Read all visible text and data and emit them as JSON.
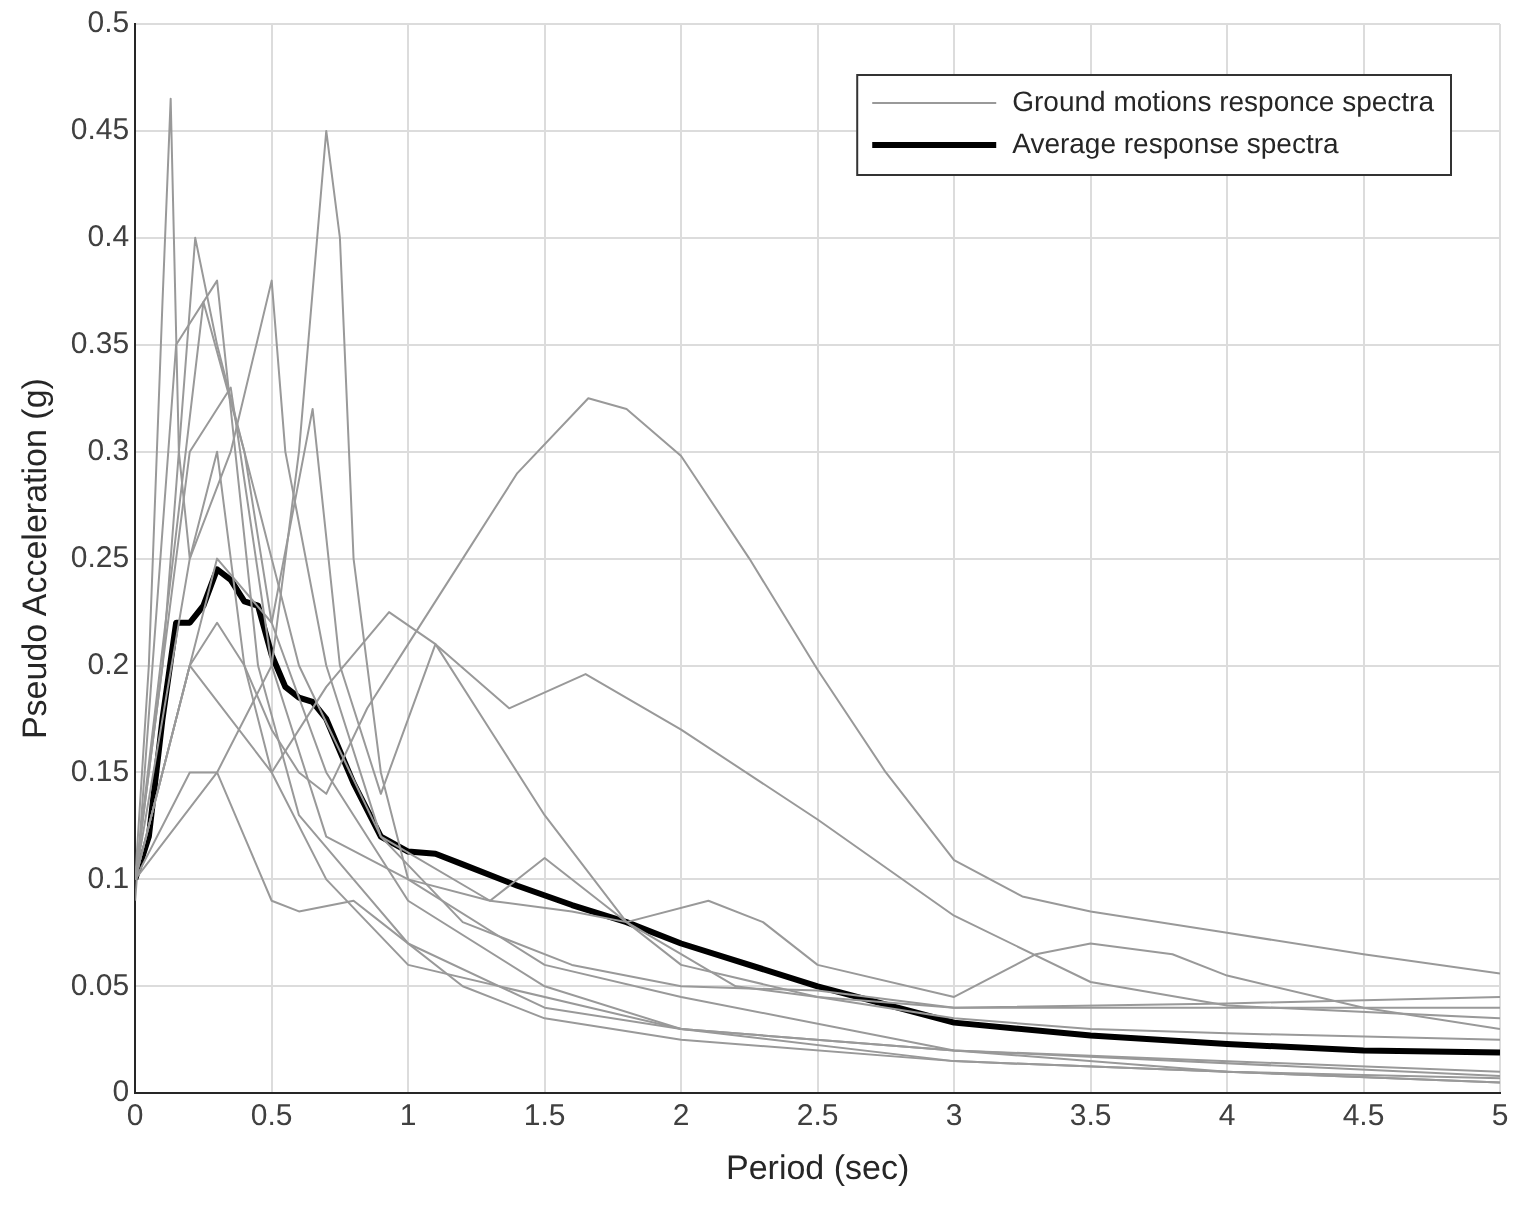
{
  "chart_data": {
    "type": "line",
    "xlabel": "Period (sec)",
    "ylabel": "Pseudo Acceleration (g)",
    "xlim": [
      0,
      5
    ],
    "xticks": [
      0,
      0.5,
      1,
      1.5,
      2,
      2.5,
      3,
      3.5,
      4,
      4.5,
      5
    ],
    "ylim": [
      0,
      0.5
    ],
    "yticks": [
      0,
      0.05,
      0.1,
      0.15,
      0.2,
      0.25,
      0.3,
      0.35,
      0.4,
      0.45,
      0.5
    ],
    "grid": true,
    "legend": "top right",
    "marker": "none",
    "line_style": "solid",
    "series": [
      {
        "name": "Ground motions responce spectra",
        "color": "#999999",
        "x": [
          0,
          0.1,
          0.2,
          0.3,
          0.4,
          0.5,
          0.6,
          0.7,
          0.85,
          1.0,
          1.2,
          1.4,
          1.66,
          1.8,
          2.0,
          2.25,
          2.5,
          2.75,
          3.0,
          3.25,
          3.5,
          4,
          4.5,
          5
        ],
        "values": [
          0.1,
          0.15,
          0.2,
          0.22,
          0.2,
          0.17,
          0.15,
          0.14,
          0.18,
          0.21,
          0.25,
          0.29,
          0.325,
          0.32,
          0.298,
          0.25,
          0.198,
          0.15,
          0.109,
          0.092,
          0.085,
          0.075,
          0.065,
          0.056
        ]
      },
      {
        "color": "#999999",
        "x": [
          0,
          0.2,
          0.5,
          0.7,
          0.93,
          1.1,
          1.37,
          1.65,
          2,
          2.5,
          3,
          3.5,
          4,
          5
        ],
        "values": [
          0.1,
          0.2,
          0.15,
          0.19,
          0.225,
          0.21,
          0.18,
          0.196,
          0.17,
          0.128,
          0.083,
          0.052,
          0.041,
          0.035
        ]
      },
      {
        "color": "#999999",
        "x": [
          0,
          0.3,
          0.5,
          0.6,
          0.7,
          0.75,
          0.8,
          0.9,
          1.0,
          1.5,
          2,
          3,
          4,
          5
        ],
        "values": [
          0.1,
          0.15,
          0.2,
          0.3,
          0.45,
          0.4,
          0.25,
          0.15,
          0.1,
          0.06,
          0.045,
          0.02,
          0.01,
          0.007
        ]
      },
      {
        "color": "#999999",
        "x": [
          0,
          0.05,
          0.1,
          0.13,
          0.16,
          0.2,
          0.3,
          0.4,
          0.5,
          0.7,
          1,
          2,
          3,
          5
        ],
        "values": [
          0.1,
          0.2,
          0.37,
          0.465,
          0.3,
          0.25,
          0.3,
          0.2,
          0.15,
          0.1,
          0.06,
          0.03,
          0.015,
          0.005
        ]
      },
      {
        "color": "#999999",
        "x": [
          0,
          0.1,
          0.22,
          0.3,
          0.4,
          0.5,
          0.7,
          1,
          1.5,
          2,
          3,
          5
        ],
        "values": [
          0.1,
          0.2,
          0.4,
          0.35,
          0.3,
          0.22,
          0.15,
          0.09,
          0.05,
          0.03,
          0.02,
          0.01
        ]
      },
      {
        "color": "#999999",
        "x": [
          0,
          0.2,
          0.35,
          0.5,
          0.55,
          0.7,
          0.9,
          1.2,
          1.6,
          2,
          2.5,
          3,
          3.5,
          4,
          5
        ],
        "values": [
          0.1,
          0.25,
          0.3,
          0.38,
          0.3,
          0.2,
          0.12,
          0.08,
          0.06,
          0.05,
          0.048,
          0.04,
          0.04,
          0.04,
          0.04
        ]
      },
      {
        "color": "#999999",
        "x": [
          0,
          0.3,
          0.5,
          0.65,
          0.75,
          0.9,
          1.1,
          1.3,
          1.5,
          1.8,
          2,
          2.2,
          2.5,
          3,
          3.5,
          4,
          5
        ],
        "values": [
          0.1,
          0.25,
          0.22,
          0.32,
          0.2,
          0.14,
          0.21,
          0.17,
          0.13,
          0.08,
          0.065,
          0.05,
          0.045,
          0.035,
          0.03,
          0.028,
          0.025
        ]
      },
      {
        "color": "#999999",
        "x": [
          0,
          0.2,
          0.3,
          0.4,
          0.5,
          0.6,
          0.8,
          0.9,
          1.2,
          1.5,
          2,
          3,
          5
        ],
        "values": [
          0.1,
          0.15,
          0.15,
          0.12,
          0.09,
          0.085,
          0.09,
          0.08,
          0.05,
          0.035,
          0.025,
          0.015,
          0.005
        ]
      },
      {
        "color": "#999999",
        "x": [
          0,
          0.2,
          0.35,
          0.5,
          0.7,
          1,
          1.3,
          1.6,
          1.8,
          2.1,
          2.3,
          2.5,
          3,
          3.3,
          3.5,
          3.8,
          4,
          4.5,
          5
        ],
        "values": [
          0.1,
          0.3,
          0.33,
          0.2,
          0.12,
          0.1,
          0.09,
          0.085,
          0.08,
          0.09,
          0.08,
          0.06,
          0.045,
          0.065,
          0.07,
          0.065,
          0.055,
          0.04,
          0.03
        ]
      },
      {
        "color": "#999999",
        "x": [
          0,
          0.25,
          0.4,
          0.6,
          0.9,
          1.3,
          1.5,
          1.7,
          2,
          2.5,
          3,
          4,
          5
        ],
        "values": [
          0.1,
          0.37,
          0.3,
          0.2,
          0.12,
          0.09,
          0.11,
          0.09,
          0.06,
          0.045,
          0.04,
          0.042,
          0.045
        ]
      },
      {
        "color": "#999999",
        "x": [
          0,
          0.15,
          0.3,
          0.45,
          0.6,
          0.8,
          1,
          1.5,
          2,
          3,
          5
        ],
        "values": [
          0.09,
          0.35,
          0.38,
          0.2,
          0.13,
          0.1,
          0.07,
          0.04,
          0.03,
          0.02,
          0.008
        ]
      },
      {
        "name": "Average response spectra",
        "color": "#000000",
        "x": [
          0,
          0.05,
          0.1,
          0.15,
          0.2,
          0.25,
          0.3,
          0.35,
          0.4,
          0.45,
          0.5,
          0.55,
          0.6,
          0.65,
          0.7,
          0.8,
          0.9,
          1.0,
          1.1,
          1.2,
          1.4,
          1.6,
          1.8,
          2.0,
          2.5,
          3.0,
          3.5,
          4,
          4.5,
          5
        ],
        "values": [
          0.1,
          0.12,
          0.175,
          0.22,
          0.22,
          0.228,
          0.245,
          0.24,
          0.23,
          0.228,
          0.205,
          0.19,
          0.185,
          0.183,
          0.175,
          0.145,
          0.12,
          0.113,
          0.112,
          0.107,
          0.097,
          0.088,
          0.08,
          0.07,
          0.05,
          0.033,
          0.027,
          0.023,
          0.02,
          0.019
        ]
      }
    ]
  }
}
